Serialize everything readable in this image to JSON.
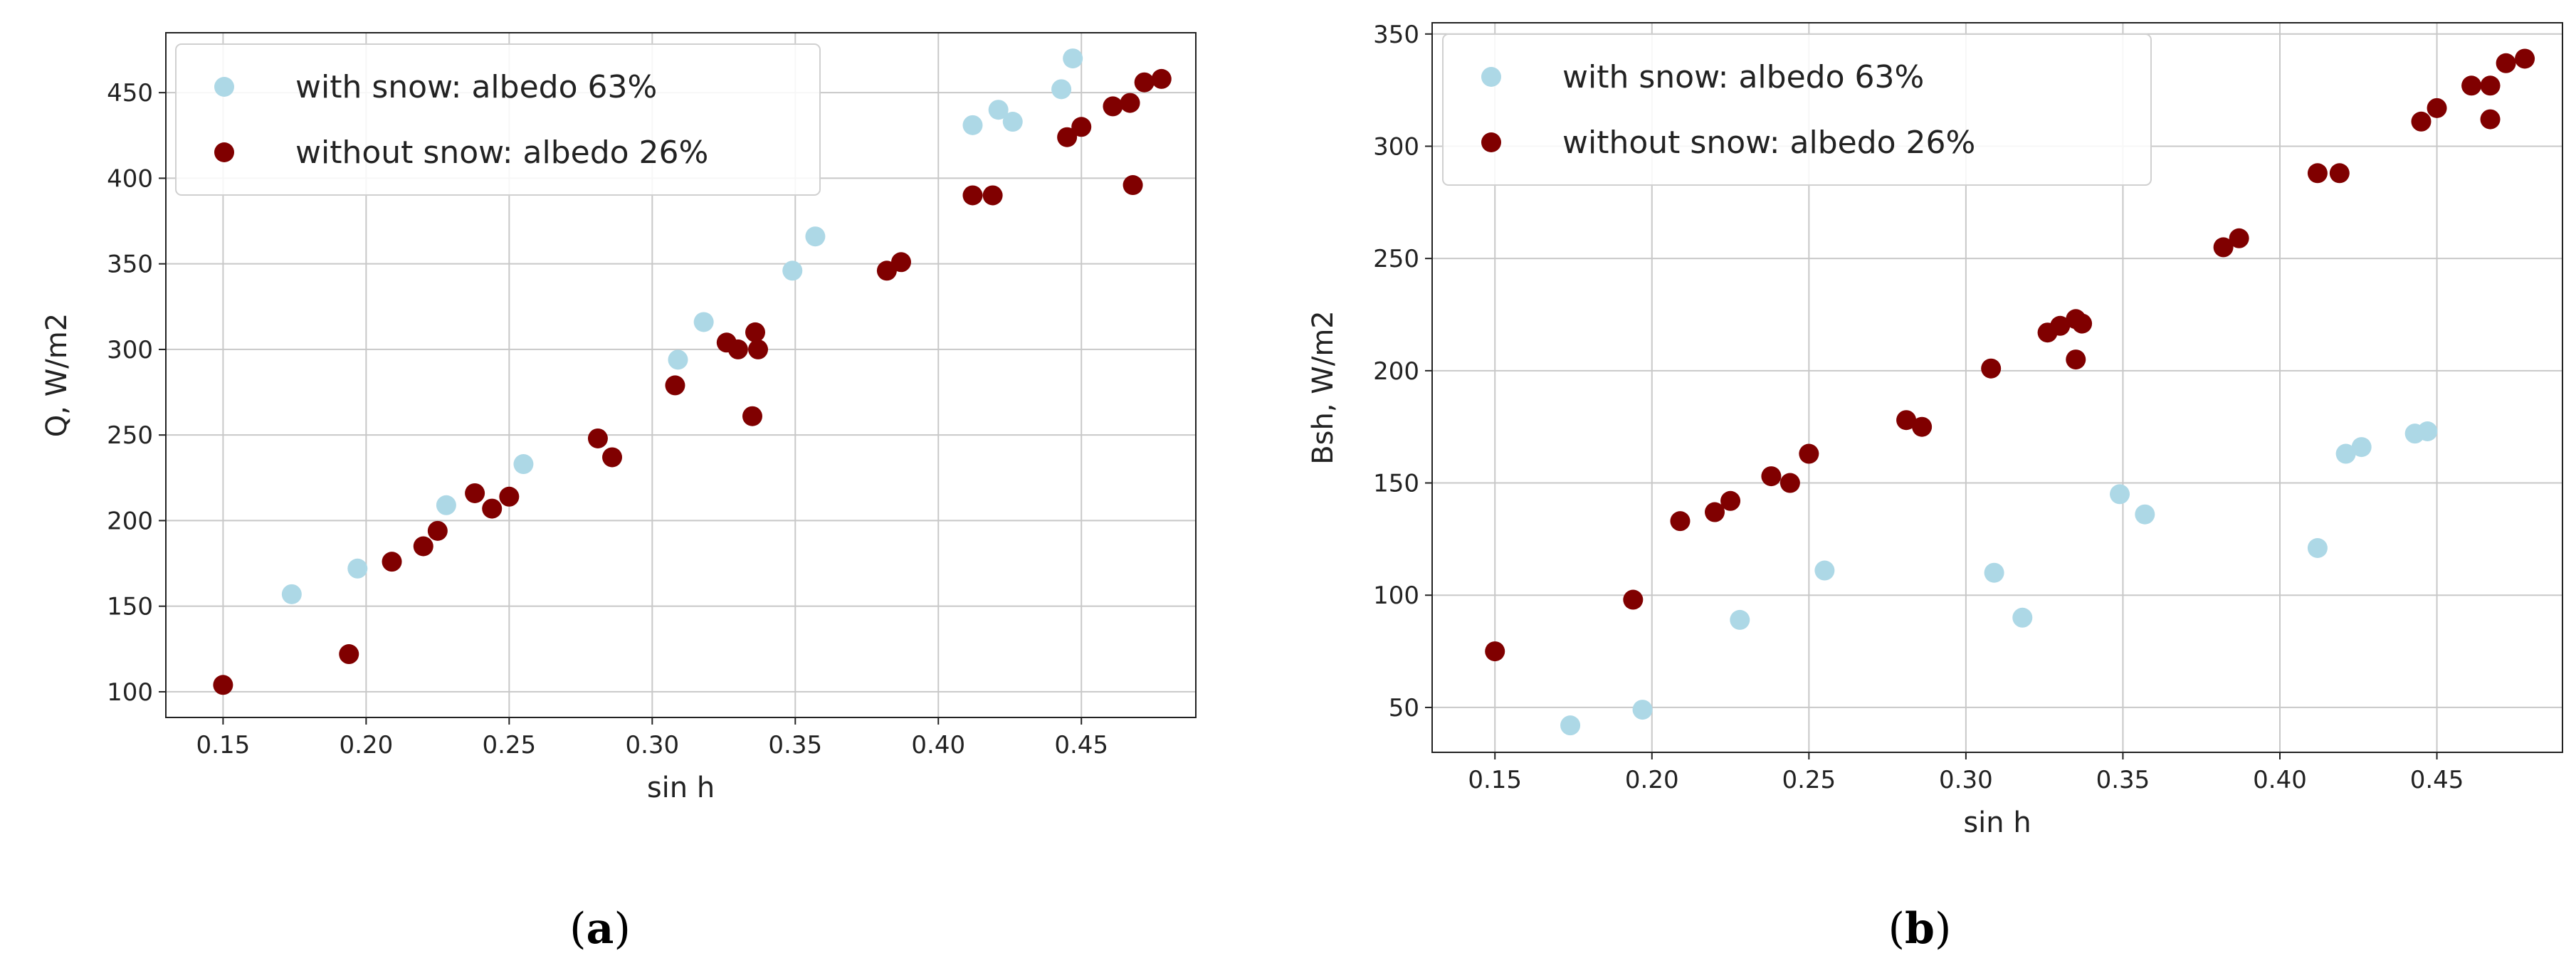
{
  "colors": {
    "with_snow": "#add8e6",
    "without_snow": "#800000",
    "grid": "#c8c8c8",
    "frame": "#222222"
  },
  "chart_data": [
    {
      "type": "scatter",
      "panel_label": {
        "open": "(",
        "letter": "a",
        "close": ")"
      },
      "xlabel": "sin h",
      "ylabel": "Q, W/m2",
      "xlim": [
        0.13,
        0.49
      ],
      "ylim": [
        85,
        485
      ],
      "xticks": [
        0.15,
        0.2,
        0.25,
        0.3,
        0.35,
        0.4,
        0.45
      ],
      "xtick_labels": [
        "0.15",
        "0.20",
        "0.25",
        "0.30",
        "0.35",
        "0.40",
        "0.45"
      ],
      "yticks": [
        100,
        150,
        200,
        250,
        300,
        350,
        400,
        450
      ],
      "ytick_labels": [
        "100",
        "150",
        "200",
        "250",
        "300",
        "350",
        "400",
        "450"
      ],
      "grid": true,
      "legend": "top-left",
      "series": [
        {
          "name": "with snow: albedo 63%",
          "color": "#add8e6",
          "points": [
            [
              0.174,
              157
            ],
            [
              0.197,
              172
            ],
            [
              0.228,
              209
            ],
            [
              0.255,
              233
            ],
            [
              0.309,
              294
            ],
            [
              0.318,
              316
            ],
            [
              0.349,
              346
            ],
            [
              0.357,
              366
            ],
            [
              0.412,
              431
            ],
            [
              0.421,
              440
            ],
            [
              0.426,
              433
            ],
            [
              0.443,
              452
            ],
            [
              0.447,
              470
            ]
          ]
        },
        {
          "name": "without snow: albedo 26%",
          "color": "#800000",
          "points": [
            [
              0.15,
              104
            ],
            [
              0.194,
              122
            ],
            [
              0.209,
              176
            ],
            [
              0.22,
              185
            ],
            [
              0.225,
              194
            ],
            [
              0.238,
              216
            ],
            [
              0.244,
              207
            ],
            [
              0.25,
              214
            ],
            [
              0.281,
              248
            ],
            [
              0.286,
              237
            ],
            [
              0.308,
              279
            ],
            [
              0.326,
              304
            ],
            [
              0.33,
              300
            ],
            [
              0.335,
              261
            ],
            [
              0.336,
              310
            ],
            [
              0.337,
              300
            ],
            [
              0.382,
              346
            ],
            [
              0.387,
              351
            ],
            [
              0.412,
              390
            ],
            [
              0.419,
              390
            ],
            [
              0.445,
              424
            ],
            [
              0.45,
              430
            ],
            [
              0.461,
              442
            ],
            [
              0.467,
              444
            ],
            [
              0.468,
              396
            ],
            [
              0.472,
              456
            ],
            [
              0.478,
              458
            ]
          ]
        }
      ]
    },
    {
      "type": "scatter",
      "panel_label": {
        "open": "(",
        "letter": "b",
        "close": ")"
      },
      "xlabel": "sin h",
      "ylabel": "Bsh, W/m2",
      "xlim": [
        0.13,
        0.49
      ],
      "ylim": [
        30,
        355
      ],
      "xticks": [
        0.15,
        0.2,
        0.25,
        0.3,
        0.35,
        0.4,
        0.45
      ],
      "xtick_labels": [
        "0.15",
        "0.20",
        "0.25",
        "0.30",
        "0.35",
        "0.40",
        "0.45"
      ],
      "yticks": [
        50,
        100,
        150,
        200,
        250,
        300,
        350
      ],
      "ytick_labels": [
        "50",
        "100",
        "150",
        "200",
        "250",
        "300",
        "350"
      ],
      "grid": true,
      "legend": "top-left",
      "series": [
        {
          "name": "with snow: albedo 63%",
          "color": "#add8e6",
          "points": [
            [
              0.174,
              42
            ],
            [
              0.197,
              49
            ],
            [
              0.228,
              89
            ],
            [
              0.255,
              111
            ],
            [
              0.309,
              110
            ],
            [
              0.318,
              90
            ],
            [
              0.349,
              145
            ],
            [
              0.357,
              136
            ],
            [
              0.412,
              121
            ],
            [
              0.421,
              163
            ],
            [
              0.426,
              166
            ],
            [
              0.443,
              172
            ],
            [
              0.447,
              173
            ]
          ]
        },
        {
          "name": "without snow: albedo 26%",
          "color": "#800000",
          "points": [
            [
              0.15,
              75
            ],
            [
              0.194,
              98
            ],
            [
              0.209,
              133
            ],
            [
              0.22,
              137
            ],
            [
              0.225,
              142
            ],
            [
              0.238,
              153
            ],
            [
              0.244,
              150
            ],
            [
              0.25,
              163
            ],
            [
              0.281,
              178
            ],
            [
              0.286,
              175
            ],
            [
              0.308,
              201
            ],
            [
              0.326,
              217
            ],
            [
              0.33,
              220
            ],
            [
              0.335,
              205
            ],
            [
              0.335,
              223
            ],
            [
              0.337,
              221
            ],
            [
              0.382,
              255
            ],
            [
              0.387,
              259
            ],
            [
              0.412,
              288
            ],
            [
              0.419,
              288
            ],
            [
              0.445,
              311
            ],
            [
              0.45,
              317
            ],
            [
              0.461,
              327
            ],
            [
              0.467,
              312
            ],
            [
              0.467,
              327
            ],
            [
              0.472,
              337
            ],
            [
              0.478,
              339
            ]
          ]
        }
      ]
    }
  ]
}
